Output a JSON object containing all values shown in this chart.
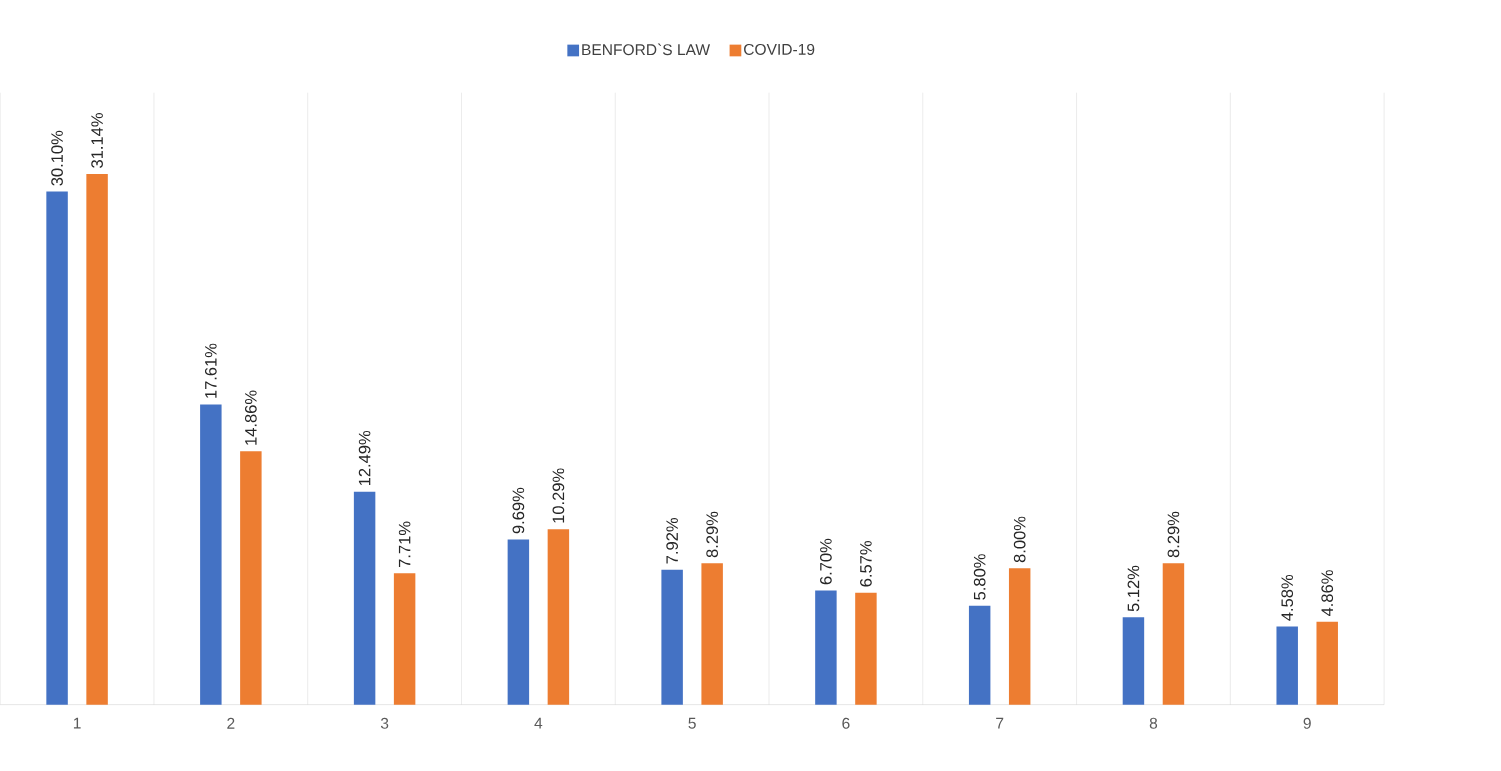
{
  "chart_data": {
    "type": "bar",
    "categories": [
      "1",
      "2",
      "3",
      "4",
      "5",
      "6",
      "7",
      "8",
      "9"
    ],
    "series": [
      {
        "name": "BENFORD`S LAW",
        "color": "#4472c4",
        "values": [
          30.1,
          17.61,
          12.49,
          9.69,
          7.92,
          6.7,
          5.8,
          5.12,
          4.58
        ],
        "value_labels": [
          "30.10%",
          "17.61%",
          "12.49%",
          "9.69%",
          "7.92%",
          "6.70%",
          "5.80%",
          "5.12%",
          "4.58%"
        ]
      },
      {
        "name": "COVID-19",
        "color": "#ed7d31",
        "values": [
          31.14,
          14.86,
          7.71,
          10.29,
          8.29,
          6.57,
          8.0,
          8.29,
          4.86
        ],
        "value_labels": [
          "31.14%",
          "14.86%",
          "7.71%",
          "10.29%",
          "8.29%",
          "6.57%",
          "8.00%",
          "8.29%",
          "4.86%"
        ]
      }
    ],
    "grid": "x",
    "legend": "top"
  }
}
